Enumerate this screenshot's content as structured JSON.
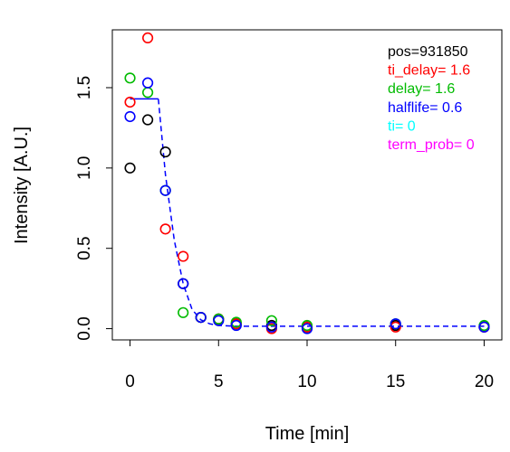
{
  "chart_data": {
    "type": "scatter",
    "xlabel": "Time [min]",
    "ylabel": "Intensity [A.U.]",
    "xlim": [
      -1,
      21
    ],
    "ylim": [
      -0.07,
      1.86
    ],
    "x_ticks": [
      "0",
      "5",
      "10",
      "15",
      "20"
    ],
    "y_ticks": [
      "0.0",
      "0.5",
      "1.0",
      "1.5"
    ],
    "grid": false,
    "legend_position": "top-right",
    "legend": [
      {
        "text": "pos=931850",
        "color": "#000000"
      },
      {
        "text": "ti_delay= 1.6",
        "color": "#ff0000"
      },
      {
        "text": "delay= 1.6",
        "color": "#00bb00"
      },
      {
        "text": "halflife= 0.6",
        "color": "#0000ff"
      },
      {
        "text": "ti= 0",
        "color": "#00ffff"
      },
      {
        "text": "term_prob= 0",
        "color": "#ff00ff"
      }
    ],
    "series": [
      {
        "color": "#000000",
        "points": [
          [
            0,
            1.0
          ],
          [
            1,
            1.3
          ],
          [
            2,
            1.1
          ],
          [
            3,
            0.28
          ],
          [
            4,
            0.07
          ],
          [
            5,
            0.06
          ],
          [
            6,
            0.03
          ],
          [
            8,
            0.02
          ],
          [
            10,
            0.01
          ],
          [
            15,
            0.02
          ],
          [
            20,
            0.01
          ]
        ]
      },
      {
        "color": "#ff0000",
        "points": [
          [
            0,
            1.41
          ],
          [
            1,
            1.81
          ],
          [
            2,
            0.62
          ],
          [
            3,
            0.45
          ],
          [
            4,
            0.07
          ],
          [
            5,
            0.06
          ],
          [
            6,
            0.03
          ],
          [
            8,
            0.0
          ],
          [
            10,
            0.01
          ],
          [
            15,
            0.01
          ],
          [
            20,
            0.01
          ]
        ]
      },
      {
        "color": "#00bb00",
        "points": [
          [
            0,
            1.56
          ],
          [
            1,
            1.47
          ],
          [
            2,
            0.86
          ],
          [
            3,
            0.1
          ],
          [
            4,
            0.07
          ],
          [
            5,
            0.06
          ],
          [
            6,
            0.04
          ],
          [
            8,
            0.05
          ],
          [
            10,
            0.02
          ],
          [
            15,
            0.03
          ],
          [
            20,
            0.02
          ]
        ]
      },
      {
        "color": "#0000ff",
        "points": [
          [
            0,
            1.32
          ],
          [
            1,
            1.53
          ],
          [
            2,
            0.86
          ],
          [
            3,
            0.28
          ],
          [
            4,
            0.07
          ],
          [
            5,
            0.05
          ],
          [
            6,
            0.02
          ],
          [
            8,
            0.01
          ],
          [
            10,
            0.0
          ],
          [
            15,
            0.03
          ],
          [
            20,
            0.01
          ]
        ]
      }
    ],
    "fit_line": {
      "color": "#0000ff",
      "flat_points": [
        [
          0,
          1.43
        ],
        [
          1.6,
          1.43
        ]
      ],
      "decay_points": [
        [
          1.6,
          1.43
        ],
        [
          2,
          0.96
        ],
        [
          2.5,
          0.55
        ],
        [
          3,
          0.28
        ],
        [
          3.5,
          0.12
        ],
        [
          4,
          0.055
        ],
        [
          4.5,
          0.03
        ],
        [
          5,
          0.02
        ],
        [
          6,
          0.015
        ],
        [
          8,
          0.015
        ],
        [
          10,
          0.015
        ],
        [
          15,
          0.015
        ],
        [
          20,
          0.015
        ]
      ]
    }
  }
}
